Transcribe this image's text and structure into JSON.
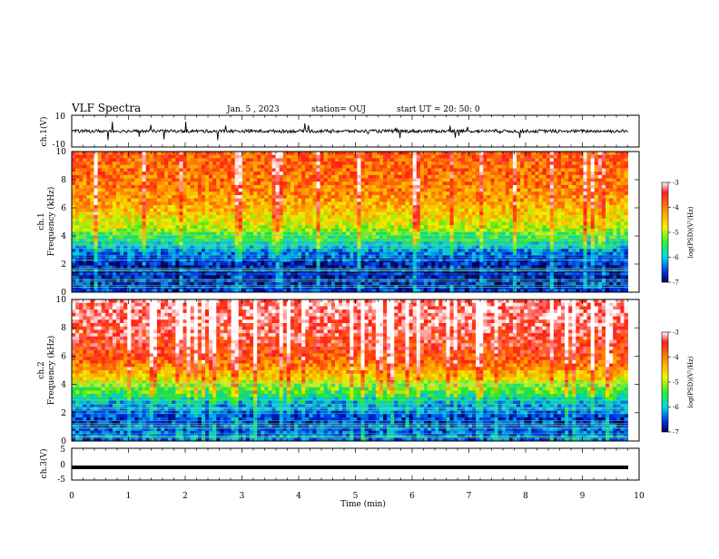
{
  "header": {
    "title": "VLF Spectra",
    "date": "Jan. 5  , 2023",
    "station": "station= OUJ",
    "start": "start  UT  =   20: 50: 0"
  },
  "chart_data": [
    {
      "id": "ch1-waveform",
      "type": "line",
      "ylabel": "ch.1(V)",
      "ylim": [
        -10,
        10
      ],
      "yticks": [
        "10",
        "-10"
      ],
      "xlim": [
        0,
        10
      ],
      "description_values": {
        "baseline": 0,
        "noise_amplitude": 1,
        "spike_max": 6
      }
    },
    {
      "id": "ch1-spectrogram",
      "type": "heatmap",
      "ylabel": "Frequency (kHz)",
      "ylabel2": "ch.1",
      "ylim": [
        0,
        10
      ],
      "yticks": [
        "0",
        "2",
        "4",
        "6",
        "8",
        "10"
      ],
      "xlim": [
        0,
        9.8
      ],
      "zlim": [
        -7,
        -3
      ],
      "colorbar": {
        "label": "log(PSD)(V²/Hz)",
        "ticks": [
          "-3",
          "-4",
          "-5",
          "-6",
          "-7"
        ]
      },
      "levels_by_frequency": [
        {
          "f": 0.5,
          "level": -6.6
        },
        {
          "f": 1.5,
          "level": -6.8
        },
        {
          "f": 2.5,
          "level": -6.5
        },
        {
          "f": 3.5,
          "level": -5.8
        },
        {
          "f": 4.5,
          "level": -5.0
        },
        {
          "f": 5.5,
          "level": -4.6
        },
        {
          "f": 6.5,
          "level": -4.3
        },
        {
          "f": 7.5,
          "level": -4.1
        },
        {
          "f": 8.5,
          "level": -4.0
        },
        {
          "f": 9.5,
          "level": -3.9
        }
      ]
    },
    {
      "id": "ch2-spectrogram",
      "type": "heatmap",
      "ylabel": "Frequency (kHz)",
      "ylabel2": "ch.2",
      "ylim": [
        0,
        10
      ],
      "yticks": [
        "0",
        "2",
        "4",
        "6",
        "8",
        "10"
      ],
      "xlim": [
        0,
        9.8
      ],
      "zlim": [
        -7,
        -3
      ],
      "colorbar": {
        "label": "log(PSD)(V²/Hz)",
        "ticks": [
          "-3",
          "-4",
          "-5",
          "-6",
          "-7"
        ]
      },
      "levels_by_frequency": [
        {
          "f": 0.5,
          "level": -6.4
        },
        {
          "f": 1.5,
          "level": -6.6
        },
        {
          "f": 2.5,
          "level": -6.2
        },
        {
          "f": 3.5,
          "level": -5.4
        },
        {
          "f": 4.5,
          "level": -4.6
        },
        {
          "f": 5.5,
          "level": -4.0
        },
        {
          "f": 6.5,
          "level": -3.7
        },
        {
          "f": 7.5,
          "level": -3.5
        },
        {
          "f": 8.5,
          "level": -3.4
        },
        {
          "f": 9.5,
          "level": -3.3
        }
      ]
    },
    {
      "id": "ch3-waveform",
      "type": "line",
      "ylabel": "ch.3(V)",
      "ylim": [
        -5,
        5
      ],
      "yticks": [
        "5",
        "0",
        "-5"
      ],
      "xlim": [
        0,
        10
      ],
      "constant_value": -1
    }
  ],
  "xaxis": {
    "label": "Time  (min)",
    "ticks": [
      "0",
      "1",
      "2",
      "3",
      "4",
      "5",
      "6",
      "7",
      "8",
      "9",
      "10"
    ]
  }
}
